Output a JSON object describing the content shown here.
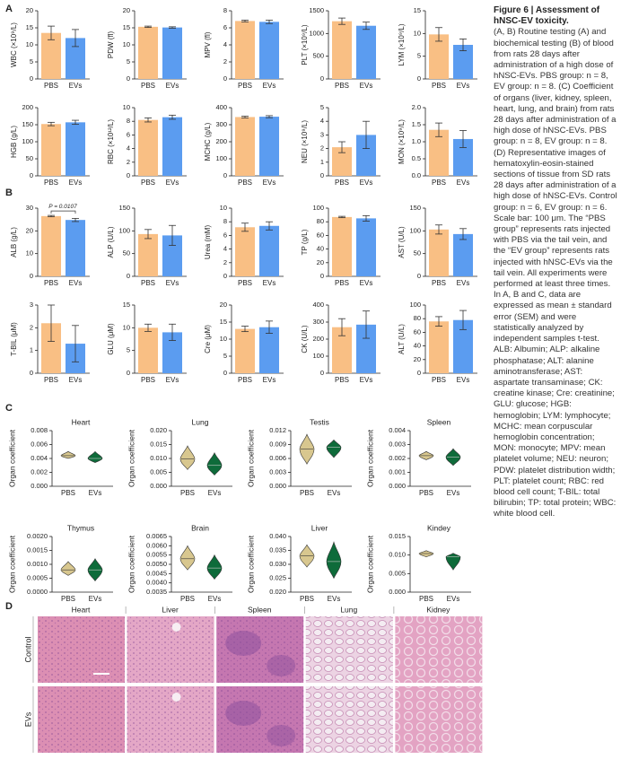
{
  "panel_labels": [
    "A",
    "B",
    "C",
    "D"
  ],
  "caption": {
    "title": "Figure 6 | Assessment of hNSC-EV toxicity.",
    "body": "(A, B) Routine testing (A) and biochemical testing (B) of blood from rats 28 days after administration of a high dose of hNSC-EVs. PBS group: n = 8, EV group: n = 8. (C) Coefficient of organs (liver, kidney, spleen, heart, lung, and brain) from rats 28 days after administration of a high dose of hNSC-EVs. PBS group: n = 8, EV group: n = 8. (D) Representative images of hematoxylin-eosin-stained sections of tissue from SD rats 28 days after administration of a high dose of hNSC-EVs. Control group: n = 6, EV group: n = 6. Scale bar: 100 μm. The “PBS group” represents rats injected with PBS via the tail vein, and the “EV group” represents rats injected with hNSC-EVs via the tail vein. All experiments were performed at least three times. In A, B and C, data are expressed as mean ± standard error (SEM) and were statistically analyzed by independent samples t-test. ALB: Albumin; ALP: alkaline phosphatase; ALT: alanine aminotransferase; AST: aspartate transaminase; CK: creatine kinase; Cre: creatinine; GLU: glucose; HGB: hemoglobin; LYM: lymphocyte; MCHC: mean corpuscular hemoglobin concentration; MON: monocyte; MPV: mean platelet volume; NEU: neuron; PDW: platelet distribution width; PLT: platelet count; RBC: red blood cell count; T-BIL: total bilirubin; TP: total protein; WBC: white blood cell."
  },
  "histology": {
    "columns": [
      "Heart",
      "Liver",
      "Spleen",
      "Lung",
      "Kidney"
    ],
    "rows": [
      "Control",
      "EVs"
    ]
  },
  "chart_data": [
    {
      "type": "bar",
      "ylabel": "WBC (×10⁹/L)",
      "categories": [
        "PBS",
        "EVs"
      ],
      "values": [
        13.5,
        12
      ],
      "errors": [
        2,
        2.5
      ],
      "colors": [
        "#f9bf84",
        "#5b9cf0"
      ],
      "ylim": [
        0,
        20
      ],
      "yticks": [
        0,
        5,
        10,
        15,
        20
      ]
    },
    {
      "type": "bar",
      "ylabel": "PDW (fl)",
      "categories": [
        "PBS",
        "EVs"
      ],
      "values": [
        15.3,
        15.1
      ],
      "errors": [
        0.2,
        0.2
      ],
      "colors": [
        "#f9bf84",
        "#5b9cf0"
      ],
      "ylim": [
        0,
        20
      ],
      "yticks": [
        0,
        5,
        10,
        15,
        20
      ]
    },
    {
      "type": "bar",
      "ylabel": "MPV (fl)",
      "categories": [
        "PBS",
        "EVs"
      ],
      "values": [
        6.8,
        6.7
      ],
      "errors": [
        0.1,
        0.2
      ],
      "colors": [
        "#f9bf84",
        "#5b9cf0"
      ],
      "ylim": [
        0,
        8
      ],
      "yticks": [
        0,
        2,
        4,
        6,
        8
      ]
    },
    {
      "type": "bar",
      "ylabel": "PLT (×10⁹/L)",
      "categories": [
        "PBS",
        "EVs"
      ],
      "values": [
        1270,
        1170
      ],
      "errors": [
        70,
        80
      ],
      "colors": [
        "#f9bf84",
        "#5b9cf0"
      ],
      "ylim": [
        0,
        1500
      ],
      "yticks": [
        0,
        500,
        1000,
        1500
      ]
    },
    {
      "type": "bar",
      "ylabel": "LYM (×10⁹/L)",
      "categories": [
        "PBS",
        "EVs"
      ],
      "values": [
        9.8,
        7.5
      ],
      "errors": [
        1.5,
        1.3
      ],
      "colors": [
        "#f9bf84",
        "#5b9cf0"
      ],
      "ylim": [
        0,
        15
      ],
      "yticks": [
        0,
        5,
        10,
        15
      ]
    },
    {
      "type": "bar",
      "ylabel": "HGB (g/L)",
      "categories": [
        "PBS",
        "EVs"
      ],
      "values": [
        152,
        157
      ],
      "errors": [
        5,
        6
      ],
      "colors": [
        "#f9bf84",
        "#5b9cf0"
      ],
      "ylim": [
        0,
        200
      ],
      "yticks": [
        0,
        50,
        100,
        150,
        200
      ]
    },
    {
      "type": "bar",
      "ylabel": "RBC (×10¹²/L)",
      "categories": [
        "PBS",
        "EVs"
      ],
      "values": [
        8.2,
        8.6
      ],
      "errors": [
        0.3,
        0.3
      ],
      "colors": [
        "#f9bf84",
        "#5b9cf0"
      ],
      "ylim": [
        0,
        10
      ],
      "yticks": [
        0,
        2,
        4,
        6,
        8,
        10
      ]
    },
    {
      "type": "bar",
      "ylabel": "MCHC (g/L)",
      "categories": [
        "PBS",
        "EVs"
      ],
      "values": [
        345,
        347
      ],
      "errors": [
        5,
        6
      ],
      "colors": [
        "#f9bf84",
        "#5b9cf0"
      ],
      "ylim": [
        0,
        400
      ],
      "yticks": [
        0,
        100,
        200,
        300,
        400
      ]
    },
    {
      "type": "bar",
      "ylabel": "NEU (×10⁹/L)",
      "categories": [
        "PBS",
        "EVs"
      ],
      "values": [
        2.1,
        3.0
      ],
      "errors": [
        0.4,
        1.0
      ],
      "colors": [
        "#f9bf84",
        "#5b9cf0"
      ],
      "ylim": [
        0,
        5
      ],
      "yticks": [
        0,
        1,
        2,
        3,
        4,
        5
      ]
    },
    {
      "type": "bar",
      "ylabel": "MON (×10⁹/L)",
      "categories": [
        "PBS",
        "EVs"
      ],
      "values": [
        1.35,
        1.08
      ],
      "errors": [
        0.2,
        0.25
      ],
      "colors": [
        "#f9bf84",
        "#5b9cf0"
      ],
      "ylim": [
        0,
        2
      ],
      "yticks": [
        {
          "value": 0,
          "label": "0.0"
        },
        0.5,
        {
          "value": 1,
          "label": "1.0"
        },
        1.5,
        {
          "value": 2,
          "label": "2.0"
        }
      ]
    },
    {
      "type": "bar",
      "ylabel": "ALB (g/L)",
      "annotation": "P = 0.0107",
      "categories": [
        "PBS",
        "EVs"
      ],
      "values": [
        26.5,
        24.8
      ],
      "errors": [
        0.3,
        0.7
      ],
      "colors": [
        "#f9bf84",
        "#5b9cf0"
      ],
      "ylim": [
        0,
        30
      ],
      "yticks": [
        0,
        10,
        20,
        30
      ]
    },
    {
      "type": "bar",
      "ylabel": "ALP (U/L)",
      "categories": [
        "PBS",
        "EVs"
      ],
      "values": [
        93,
        90
      ],
      "errors": [
        10,
        22
      ],
      "colors": [
        "#f9bf84",
        "#5b9cf0"
      ],
      "ylim": [
        0,
        150
      ],
      "yticks": [
        0,
        50,
        100,
        150
      ]
    },
    {
      "type": "bar",
      "ylabel": "Urea (mM)",
      "categories": [
        "PBS",
        "EVs"
      ],
      "values": [
        7.2,
        7.4
      ],
      "errors": [
        0.6,
        0.6
      ],
      "colors": [
        "#f9bf84",
        "#5b9cf0"
      ],
      "ylim": [
        0,
        10
      ],
      "yticks": [
        0,
        2,
        4,
        6,
        8,
        10
      ]
    },
    {
      "type": "bar",
      "ylabel": "TP (g/L)",
      "categories": [
        "PBS",
        "EVs"
      ],
      "values": [
        87,
        85
      ],
      "errors": [
        1,
        4
      ],
      "colors": [
        "#f9bf84",
        "#5b9cf0"
      ],
      "ylim": [
        0,
        100
      ],
      "yticks": [
        0,
        20,
        40,
        60,
        80,
        100
      ]
    },
    {
      "type": "bar",
      "ylabel": "AST (U/L)",
      "categories": [
        "PBS",
        "EVs"
      ],
      "values": [
        103,
        93
      ],
      "errors": [
        10,
        12
      ],
      "colors": [
        "#f9bf84",
        "#5b9cf0"
      ],
      "ylim": [
        0,
        150
      ],
      "yticks": [
        0,
        50,
        100,
        150
      ]
    },
    {
      "type": "bar",
      "ylabel": "T-BIL (μM)",
      "categories": [
        "PBS",
        "EVs"
      ],
      "values": [
        2.2,
        1.3
      ],
      "errors": [
        0.8,
        0.8
      ],
      "colors": [
        "#f9bf84",
        "#5b9cf0"
      ],
      "ylim": [
        0,
        3
      ],
      "yticks": [
        0,
        1,
        2,
        3
      ]
    },
    {
      "type": "bar",
      "ylabel": "GLU (μM)",
      "categories": [
        "PBS",
        "EVs"
      ],
      "values": [
        10,
        9
      ],
      "errors": [
        0.8,
        1.8
      ],
      "colors": [
        "#f9bf84",
        "#5b9cf0"
      ],
      "ylim": [
        0,
        15
      ],
      "yticks": [
        0,
        5,
        10,
        15
      ]
    },
    {
      "type": "bar",
      "ylabel": "Cre (μM)",
      "categories": [
        "PBS",
        "EVs"
      ],
      "values": [
        13,
        13.5
      ],
      "errors": [
        0.8,
        1.8
      ],
      "colors": [
        "#f9bf84",
        "#5b9cf0"
      ],
      "ylim": [
        0,
        20
      ],
      "yticks": [
        0,
        5,
        10,
        15,
        20
      ]
    },
    {
      "type": "bar",
      "ylabel": "CK (U/L)",
      "categories": [
        "PBS",
        "EVs"
      ],
      "values": [
        270,
        285
      ],
      "errors": [
        50,
        80
      ],
      "colors": [
        "#f9bf84",
        "#5b9cf0"
      ],
      "ylim": [
        0,
        400
      ],
      "yticks": [
        0,
        100,
        200,
        300,
        400
      ]
    },
    {
      "type": "bar",
      "ylabel": "ALT (U/L)",
      "categories": [
        "PBS",
        "EVs"
      ],
      "values": [
        76,
        78
      ],
      "errors": [
        7,
        14
      ],
      "colors": [
        "#f9bf84",
        "#5b9cf0"
      ],
      "ylim": [
        0,
        100
      ],
      "yticks": [
        0,
        20,
        40,
        60,
        80,
        100
      ]
    },
    {
      "type": "violin",
      "title": "Heart",
      "ylabel": "Organ coefficient",
      "series": [
        {
          "name": "PBS",
          "color": "#d8c78f",
          "min": 0.004,
          "median": 0.0044,
          "max": 0.005
        },
        {
          "name": "EVs",
          "color": "#0e6b3a",
          "min": 0.0034,
          "median": 0.004,
          "max": 0.005
        }
      ],
      "ylim": [
        0,
        0.008
      ],
      "yticks": [
        {
          "value": 0,
          "label": "0.000"
        },
        0.002,
        0.004,
        0.006,
        0.008
      ]
    },
    {
      "type": "violin",
      "title": "Lung",
      "ylabel": "Organ coefficient",
      "series": [
        {
          "name": "PBS",
          "color": "#d8c78f",
          "min": 0.006,
          "median": 0.0098,
          "max": 0.0145
        },
        {
          "name": "EVs",
          "color": "#0e6b3a",
          "min": 0.004,
          "median": 0.0075,
          "max": 0.012
        }
      ],
      "ylim": [
        0,
        0.02
      ],
      "yticks": [
        {
          "value": 0,
          "label": "0.000"
        },
        0.005,
        {
          "value": 0.01,
          "label": "0.010"
        },
        0.015,
        {
          "value": 0.02,
          "label": "0.020"
        }
      ]
    },
    {
      "type": "violin",
      "title": "Testis",
      "ylabel": "Organ coefficient",
      "series": [
        {
          "name": "PBS",
          "color": "#d8c78f",
          "min": 0.0048,
          "median": 0.008,
          "max": 0.0112
        },
        {
          "name": "EVs",
          "color": "#0e6b3a",
          "min": 0.0062,
          "median": 0.0084,
          "max": 0.01
        }
      ],
      "ylim": [
        0,
        0.012
      ],
      "yticks": [
        {
          "value": 0,
          "label": "0.000"
        },
        0.003,
        0.006,
        0.009,
        0.012
      ]
    },
    {
      "type": "violin",
      "title": "Spleen",
      "ylabel": "Organ coefficient",
      "series": [
        {
          "name": "PBS",
          "color": "#d8c78f",
          "min": 0.0019,
          "median": 0.0022,
          "max": 0.0025
        },
        {
          "name": "EVs",
          "color": "#0e6b3a",
          "min": 0.0015,
          "median": 0.0021,
          "max": 0.0027
        }
      ],
      "ylim": [
        0,
        0.004
      ],
      "yticks": [
        {
          "value": 0,
          "label": "0.000"
        },
        0.001,
        0.002,
        0.003,
        0.004
      ]
    },
    {
      "type": "violin",
      "title": "Thymus",
      "ylabel": "Organ coefficient",
      "series": [
        {
          "name": "PBS",
          "color": "#d8c78f",
          "min": 0.0006,
          "median": 0.0008,
          "max": 0.0011
        },
        {
          "name": "EVs",
          "color": "#0e6b3a",
          "min": 0.0004,
          "median": 0.0008,
          "max": 0.0012
        }
      ],
      "ylim": [
        0,
        0.002
      ],
      "yticks": [
        {
          "value": 0,
          "label": "0.0000"
        },
        0.0005,
        {
          "value": 0.001,
          "label": "0.0010"
        },
        0.0015,
        {
          "value": 0.002,
          "label": "0.0020"
        }
      ]
    },
    {
      "type": "violin",
      "title": "Brain",
      "ylabel": "Organ coefficient",
      "series": [
        {
          "name": "PBS",
          "color": "#d8c78f",
          "min": 0.0047,
          "median": 0.0053,
          "max": 0.006
        },
        {
          "name": "EVs",
          "color": "#0e6b3a",
          "min": 0.0042,
          "median": 0.0048,
          "max": 0.0055
        }
      ],
      "ylim": [
        0.0035,
        0.0065
      ],
      "yticks": [
        0.0035,
        {
          "value": 0.004,
          "label": "0.0040"
        },
        0.0045,
        {
          "value": 0.005,
          "label": "0.0050"
        },
        0.0055,
        {
          "value": 0.006,
          "label": "0.0060"
        },
        0.0065
      ]
    },
    {
      "type": "violin",
      "title": "Liver",
      "ylabel": "Organ coefficient",
      "series": [
        {
          "name": "PBS",
          "color": "#d8c78f",
          "min": 0.029,
          "median": 0.033,
          "max": 0.037
        },
        {
          "name": "EVs",
          "color": "#0e6b3a",
          "min": 0.025,
          "median": 0.031,
          "max": 0.038
        }
      ],
      "ylim": [
        0.02,
        0.04
      ],
      "yticks": [
        {
          "value": 0.02,
          "label": "0.020"
        },
        0.025,
        {
          "value": 0.03,
          "label": "0.030"
        },
        0.035,
        {
          "value": 0.04,
          "label": "0.040"
        }
      ]
    },
    {
      "type": "violin",
      "title": "Kindey",
      "ylabel": "Organ coefficient",
      "series": [
        {
          "name": "PBS",
          "color": "#d8c78f",
          "min": 0.0095,
          "median": 0.0104,
          "max": 0.0112
        },
        {
          "name": "EVs",
          "color": "#0e6b3a",
          "min": 0.006,
          "median": 0.0095,
          "max": 0.0105
        }
      ],
      "ylim": [
        0,
        0.015
      ],
      "yticks": [
        {
          "value": 0,
          "label": "0.000"
        },
        0.005,
        {
          "value": 0.01,
          "label": "0.010"
        },
        0.015
      ]
    }
  ]
}
